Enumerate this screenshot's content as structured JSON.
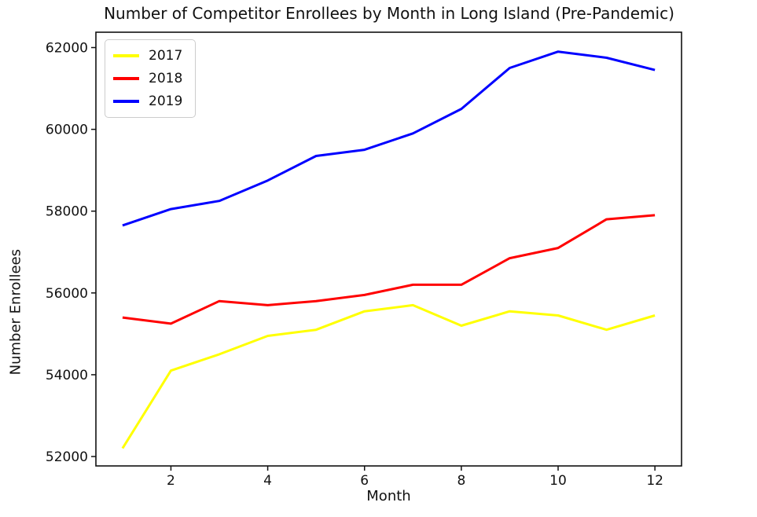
{
  "chart_data": {
    "type": "line",
    "title": "Number of Competitor Enrollees by Month in Long Island (Pre-Pandemic)",
    "xlabel": "Month",
    "ylabel": "Number Enrollees",
    "x": [
      1,
      2,
      3,
      4,
      5,
      6,
      7,
      8,
      9,
      10,
      11,
      12
    ],
    "series": [
      {
        "name": "2017",
        "color": "#ffff00",
        "values": [
          52200,
          54100,
          54500,
          54950,
          55100,
          55550,
          55700,
          55200,
          55550,
          55450,
          55100,
          55450
        ]
      },
      {
        "name": "2018",
        "color": "#ff0000",
        "values": [
          55400,
          55250,
          55800,
          55700,
          55800,
          55950,
          56200,
          56200,
          56850,
          57100,
          57800,
          57900
        ]
      },
      {
        "name": "2019",
        "color": "#0000ff",
        "values": [
          57650,
          58050,
          58250,
          58750,
          59350,
          59500,
          59900,
          60500,
          61500,
          61900,
          61750,
          61450
        ]
      }
    ],
    "xticks": [
      2,
      4,
      6,
      8,
      10,
      12
    ],
    "yticks": [
      52000,
      54000,
      56000,
      58000,
      60000,
      62000
    ],
    "xlim": [
      0.45,
      12.55
    ],
    "ylim": [
      51770,
      62375
    ],
    "grid": false,
    "legend_position": "upper left",
    "legend_entries": [
      "2017",
      "2018",
      "2019"
    ]
  },
  "style": {
    "line_width": 3,
    "axis_color": "#111111",
    "background": "#ffffff"
  }
}
